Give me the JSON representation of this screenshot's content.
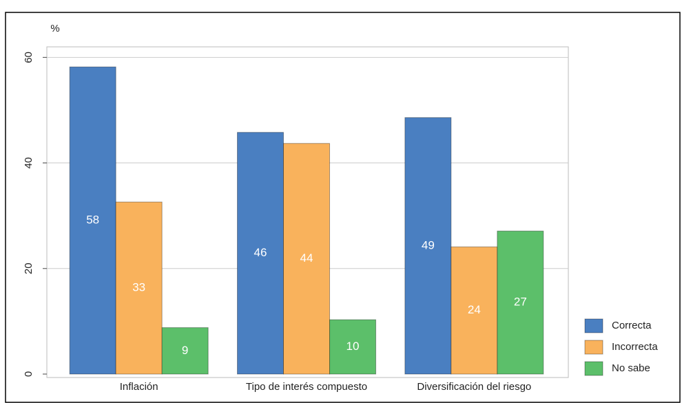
{
  "chart_data": {
    "type": "bar",
    "y_unit": "%",
    "categories": [
      "Inflación",
      "Tipo de interés compuesto",
      "Diversificación del riesgo"
    ],
    "series": [
      {
        "name": "Correcta",
        "color": "#4a7fc1",
        "values": [
          58.2,
          45.8,
          48.6
        ],
        "value_labels": [
          "58",
          "46",
          "49"
        ]
      },
      {
        "name": "Incorrecta",
        "color": "#f9b25c",
        "values": [
          32.6,
          43.7,
          24.1
        ],
        "value_labels": [
          "33",
          "44",
          "24"
        ]
      },
      {
        "name": "No sabe",
        "color": "#5cbf6a",
        "values": [
          8.8,
          10.3,
          27.1
        ],
        "value_labels": [
          "9",
          "10",
          "27"
        ]
      }
    ],
    "ylim": [
      0,
      62
    ],
    "yticks": [
      0,
      20,
      40,
      60
    ],
    "grid": true,
    "legend": "right"
  }
}
